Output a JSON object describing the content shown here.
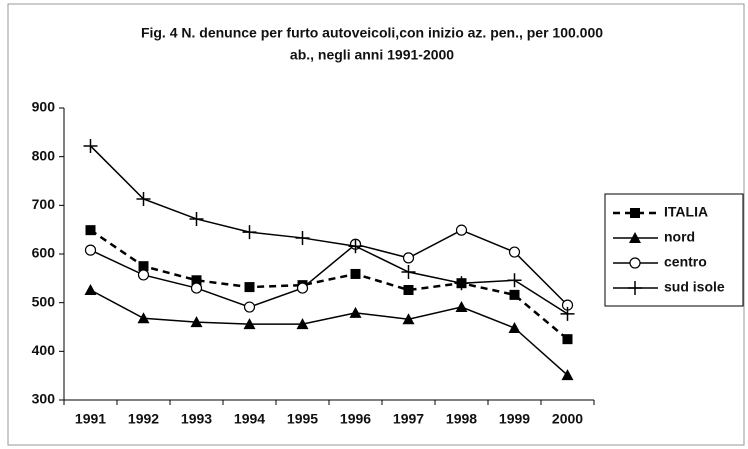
{
  "chart_data": {
    "type": "line",
    "title": [
      "Fig. 4 N. denunce per furto autoveicoli,con inizio az. pen., per 100.000",
      "ab., negli anni 1991-2000"
    ],
    "categories": [
      "1991",
      "1992",
      "1993",
      "1994",
      "1995",
      "1996",
      "1997",
      "1998",
      "1999",
      "2000"
    ],
    "ylim": [
      300,
      900
    ],
    "yticks": [
      300,
      400,
      500,
      600,
      700,
      800,
      900
    ],
    "grid": false,
    "legend": "right",
    "series": [
      {
        "name": "ITALIA",
        "color": "#000000",
        "marker": "square",
        "dashed": true,
        "values": [
          649,
          575,
          546,
          532,
          536,
          559,
          526,
          540,
          516,
          425
        ]
      },
      {
        "name": "nord",
        "color": "#000000",
        "marker": "triangle",
        "dashed": false,
        "values": [
          526,
          468,
          460,
          456,
          456,
          479,
          466,
          491,
          448,
          351
        ]
      },
      {
        "name": "centro",
        "color": "#000000",
        "marker": "circle",
        "dashed": false,
        "values": [
          608,
          557,
          530,
          491,
          530,
          620,
          592,
          649,
          604,
          495
        ]
      },
      {
        "name": "sud isole",
        "color": "#000000",
        "marker": "plus",
        "dashed": false,
        "values": [
          822,
          713,
          672,
          645,
          633,
          616,
          563,
          540,
          546,
          477
        ]
      }
    ]
  }
}
